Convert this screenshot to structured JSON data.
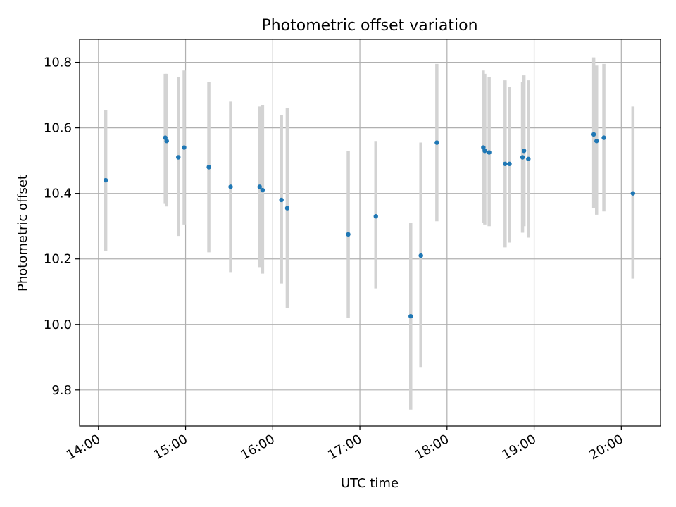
{
  "chart_data": {
    "type": "scatter",
    "title": "Photometric offset variation",
    "xlabel": "UTC time",
    "ylabel": "Photometric offset",
    "xlim": [
      "13:47",
      "20:27"
    ],
    "ylim": [
      9.69,
      10.87
    ],
    "x_ticks": [
      "14:00",
      "15:00",
      "16:00",
      "17:00",
      "18:00",
      "19:00",
      "20:00"
    ],
    "y_ticks": [
      "9.8",
      "10.0",
      "10.2",
      "10.4",
      "10.6",
      "10.8"
    ],
    "grid": true,
    "colors": {
      "points": "#1f77b4",
      "errorbars": "#d3d3d3",
      "grid": "#b0b0b0"
    },
    "points": [
      {
        "x": "14:05",
        "y": 10.44,
        "ylow": 10.225,
        "yhigh": 10.655
      },
      {
        "x": "14:46",
        "y": 10.57,
        "ylow": 10.37,
        "yhigh": 10.765
      },
      {
        "x": "14:47",
        "y": 10.56,
        "ylow": 10.36,
        "yhigh": 10.765
      },
      {
        "x": "14:55",
        "y": 10.51,
        "ylow": 10.27,
        "yhigh": 10.755
      },
      {
        "x": "14:59",
        "y": 10.54,
        "ylow": 10.305,
        "yhigh": 10.775
      },
      {
        "x": "15:16",
        "y": 10.48,
        "ylow": 10.22,
        "yhigh": 10.74
      },
      {
        "x": "15:31",
        "y": 10.42,
        "ylow": 10.16,
        "yhigh": 10.68
      },
      {
        "x": "15:51",
        "y": 10.42,
        "ylow": 10.175,
        "yhigh": 10.665
      },
      {
        "x": "15:53",
        "y": 10.41,
        "ylow": 10.155,
        "yhigh": 10.67
      },
      {
        "x": "16:06",
        "y": 10.38,
        "ylow": 10.125,
        "yhigh": 10.64
      },
      {
        "x": "16:10",
        "y": 10.355,
        "ylow": 10.05,
        "yhigh": 10.66
      },
      {
        "x": "16:52",
        "y": 10.275,
        "ylow": 10.02,
        "yhigh": 10.53
      },
      {
        "x": "17:11",
        "y": 10.33,
        "ylow": 10.11,
        "yhigh": 10.56
      },
      {
        "x": "17:35",
        "y": 10.025,
        "ylow": 9.74,
        "yhigh": 10.31
      },
      {
        "x": "17:42",
        "y": 10.21,
        "ylow": 9.87,
        "yhigh": 10.555
      },
      {
        "x": "17:53",
        "y": 10.555,
        "ylow": 10.315,
        "yhigh": 10.795
      },
      {
        "x": "18:25",
        "y": 10.54,
        "ylow": 10.31,
        "yhigh": 10.775
      },
      {
        "x": "18:26",
        "y": 10.53,
        "ylow": 10.305,
        "yhigh": 10.765
      },
      {
        "x": "18:29",
        "y": 10.525,
        "ylow": 10.3,
        "yhigh": 10.755
      },
      {
        "x": "18:40",
        "y": 10.49,
        "ylow": 10.235,
        "yhigh": 10.745
      },
      {
        "x": "18:43",
        "y": 10.49,
        "ylow": 10.25,
        "yhigh": 10.725
      },
      {
        "x": "18:52",
        "y": 10.51,
        "ylow": 10.28,
        "yhigh": 10.74
      },
      {
        "x": "18:53",
        "y": 10.53,
        "ylow": 10.3,
        "yhigh": 10.76
      },
      {
        "x": "18:56",
        "y": 10.505,
        "ylow": 10.265,
        "yhigh": 10.745
      },
      {
        "x": "19:41",
        "y": 10.58,
        "ylow": 10.355,
        "yhigh": 10.815
      },
      {
        "x": "19:43",
        "y": 10.56,
        "ylow": 10.335,
        "yhigh": 10.79
      },
      {
        "x": "19:48",
        "y": 10.57,
        "ylow": 10.345,
        "yhigh": 10.795
      },
      {
        "x": "20:08",
        "y": 10.4,
        "ylow": 10.14,
        "yhigh": 10.665
      }
    ]
  }
}
